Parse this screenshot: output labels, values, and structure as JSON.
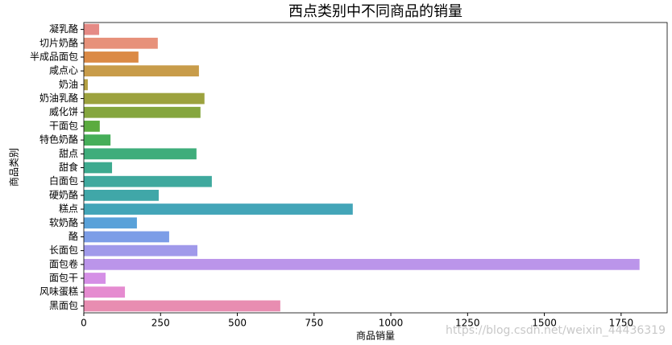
{
  "chart_data": {
    "type": "barh",
    "title": "西点类别中不同商品的销量",
    "x_label": "商品销量",
    "y_label": "商品类别",
    "categories": [
      "凝乳酪",
      "切片奶酪",
      "半成品面包",
      "咸点心",
      "奶油",
      "奶油乳酪",
      "威化饼",
      "干面包",
      "特色奶酪",
      "甜点",
      "甜食",
      "白面包",
      "硬奶酪",
      "糕点",
      "软奶酪",
      "酪",
      "长面包",
      "面包卷",
      "面包干",
      "风味蛋糕",
      "黑面包"
    ],
    "values": [
      50,
      241,
      178,
      375,
      13,
      393,
      380,
      52,
      87,
      367,
      92,
      417,
      244,
      876,
      173,
      278,
      370,
      1810,
      71,
      134,
      640
    ],
    "colors": [
      "#e58a85",
      "#e7917a",
      "#db8a45",
      "#c89c4a",
      "#b4a042",
      "#9ca23e",
      "#85a63e",
      "#5bab3f",
      "#46ae59",
      "#3fad7b",
      "#3daa8f",
      "#3fa99e",
      "#40a7a8",
      "#43a5b8",
      "#59a1d9",
      "#7c9de7",
      "#a099ea",
      "#bb95ea",
      "#d58fe6",
      "#e58bd0",
      "#e88db1"
    ],
    "xlim": [
      0,
      1900
    ],
    "xticks": [
      0,
      250,
      500,
      750,
      1000,
      1250,
      1500,
      1750
    ],
    "watermark": "https://blog.csdn.net/weixin_44436319"
  }
}
